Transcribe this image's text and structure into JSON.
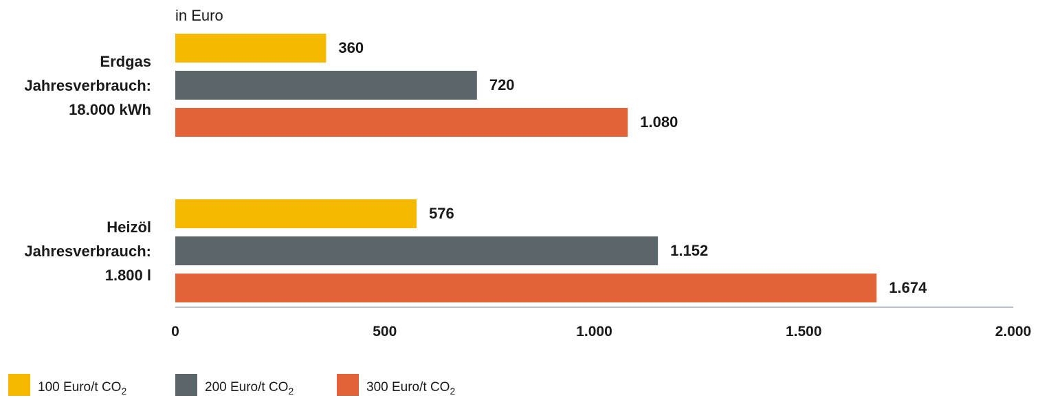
{
  "chart_data": {
    "type": "bar",
    "orientation": "horizontal",
    "unit_label": "in Euro",
    "categories": [
      {
        "lines": [
          "Erdgas",
          "Jahresverbrauch:",
          "18.000 kWh"
        ]
      },
      {
        "lines": [
          "Heizöl",
          "Jahresverbrauch:",
          "1.800 l"
        ]
      }
    ],
    "series": [
      {
        "name": "100 Euro/t CO",
        "name_sub": "2",
        "color": "#F7B800",
        "values": [
          360,
          576
        ],
        "value_labels": [
          "360",
          "576"
        ]
      },
      {
        "name": "200 Euro/t CO",
        "name_sub": "2",
        "color": "#5B666B",
        "values": [
          720,
          1152
        ],
        "value_labels": [
          "720",
          "1.152"
        ]
      },
      {
        "name": "300 Euro/t CO",
        "name_sub": "2",
        "color": "#E2623A",
        "values": [
          1080,
          1674
        ],
        "value_labels": [
          "1.080",
          "1.674"
        ]
      }
    ],
    "xlim": [
      0,
      2000
    ],
    "xticks": [
      0,
      500,
      1000,
      1500,
      2000
    ],
    "xtick_labels": [
      "0",
      "500",
      "1.000",
      "1.500",
      "2.000"
    ],
    "grid": false,
    "legend_position": "bottom-left",
    "axis_color": "#b9c0c4"
  }
}
